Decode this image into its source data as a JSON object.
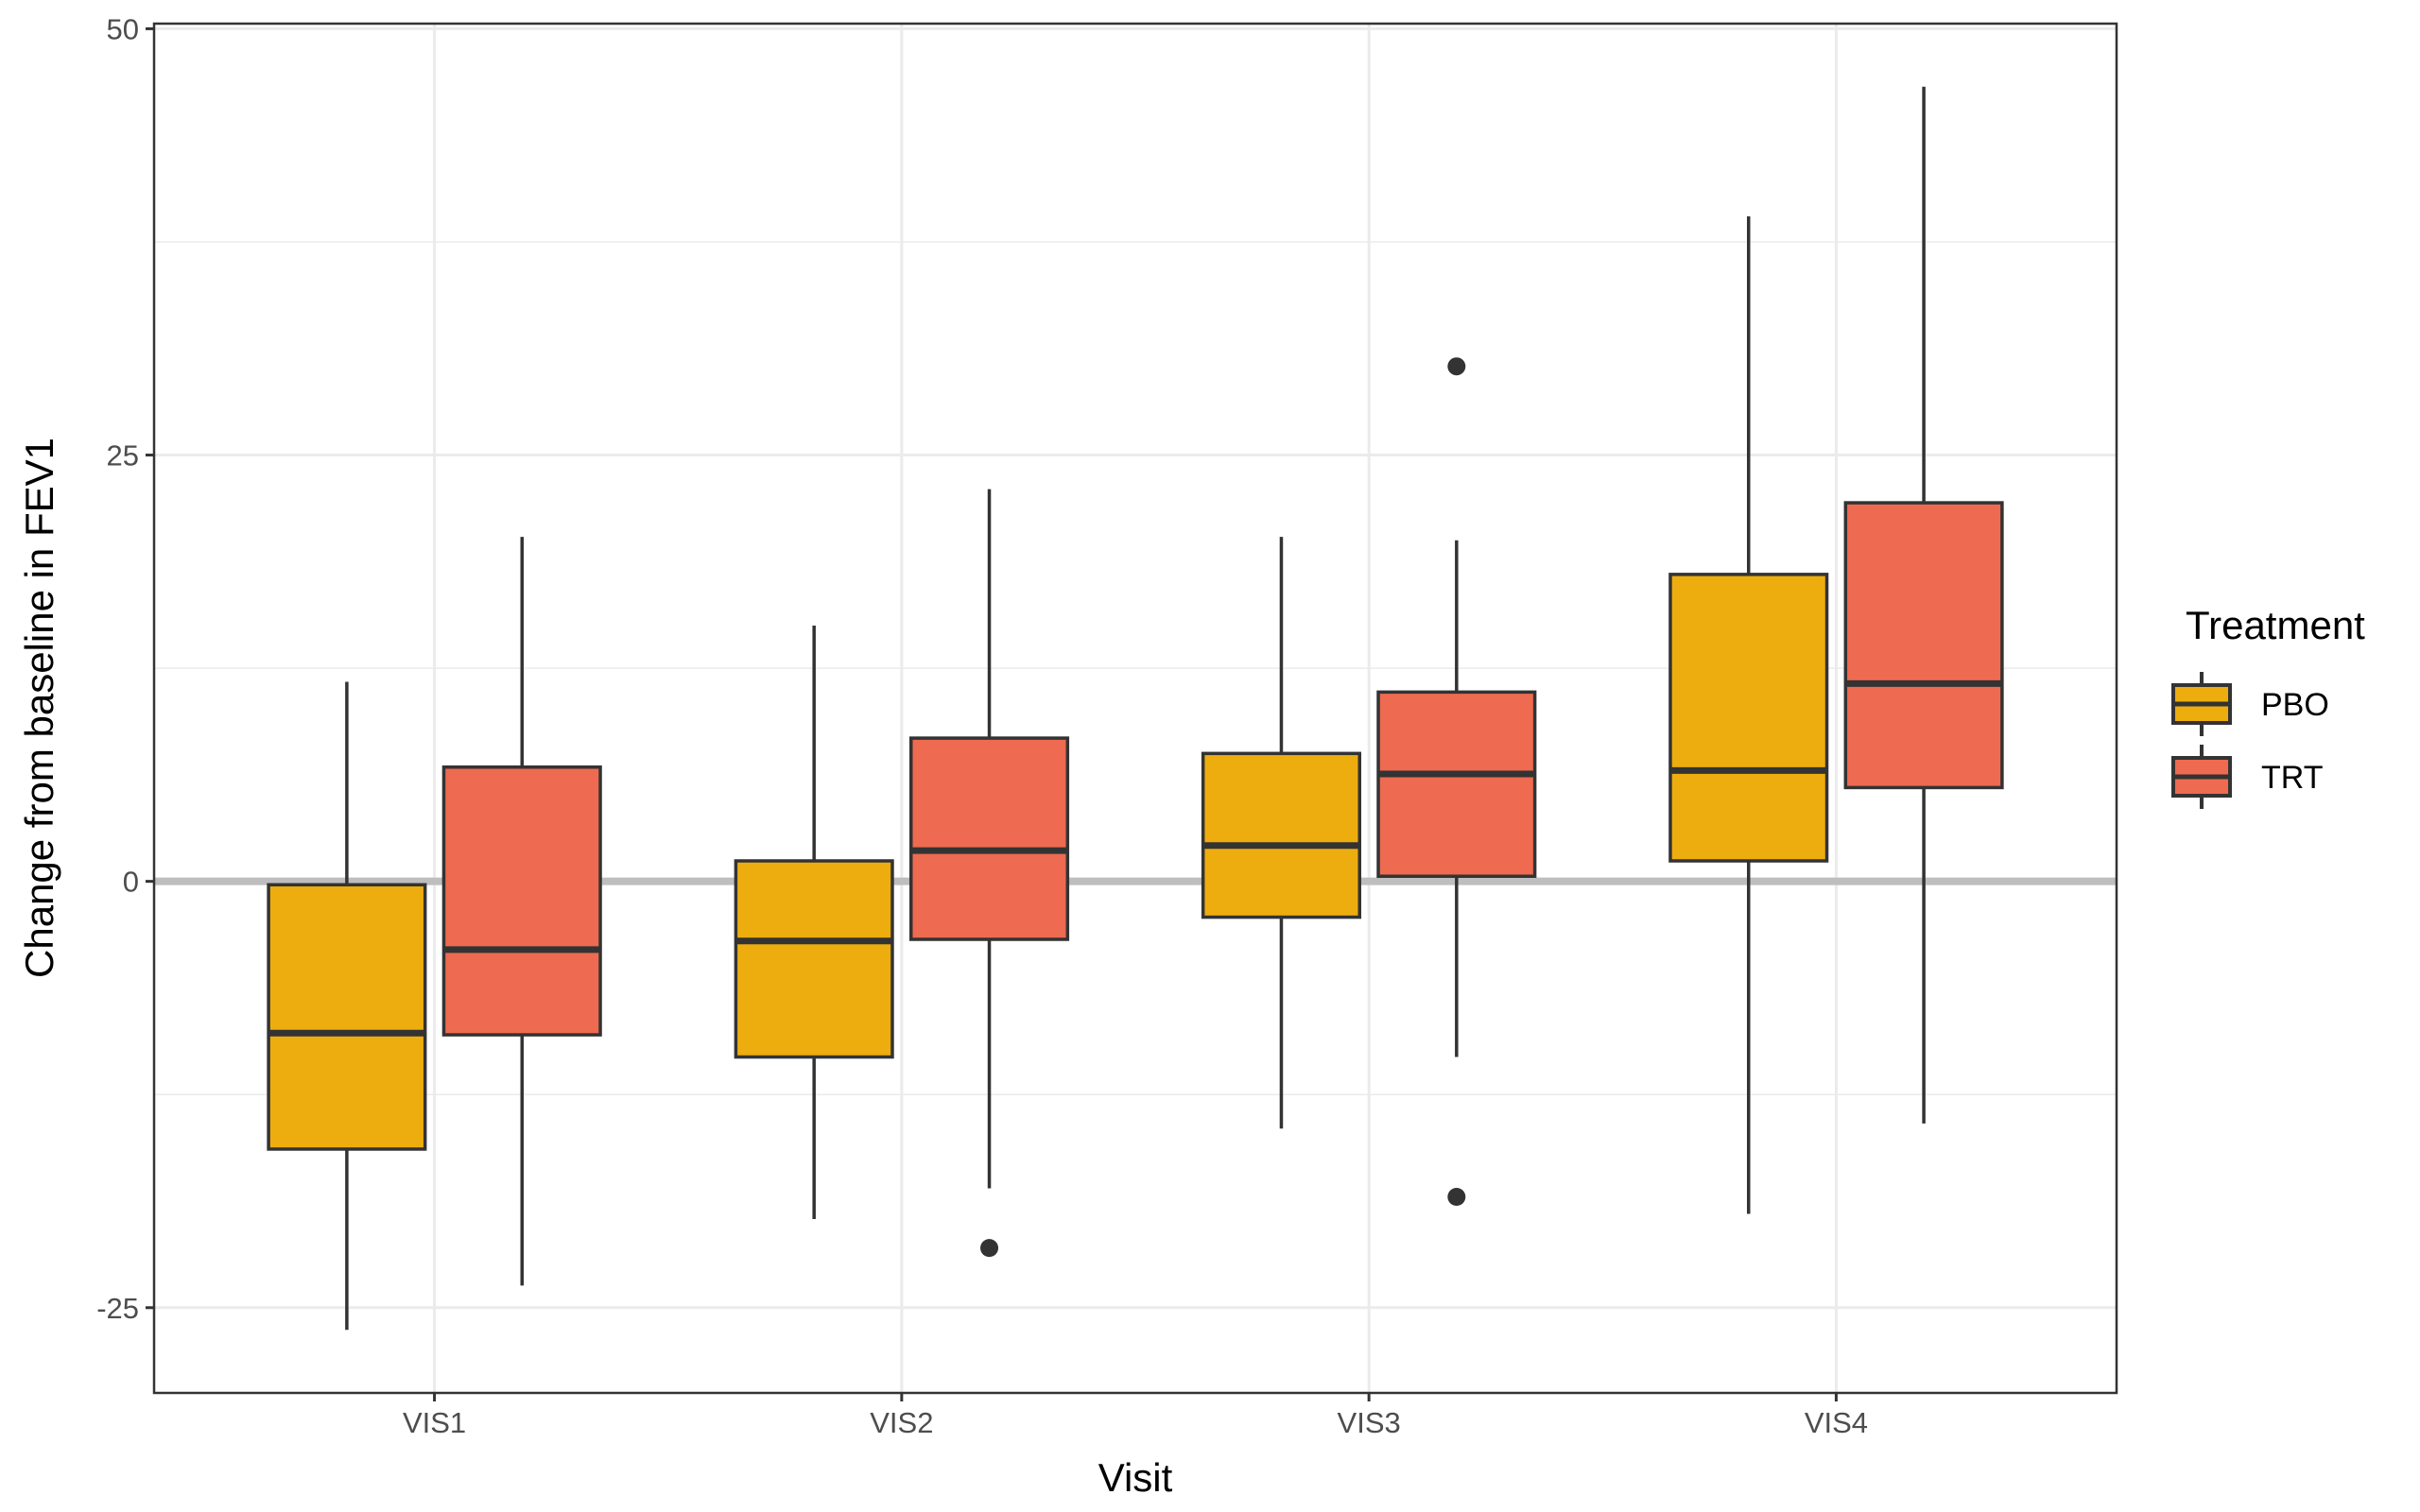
{
  "chart_data": {
    "type": "boxplot",
    "xlabel": "Visit",
    "ylabel": "Change from baseline in FEV1",
    "categories": [
      "VIS1",
      "VIS2",
      "VIS3",
      "VIS4"
    ],
    "ylim": [
      -30,
      50.3
    ],
    "yticks": [
      -25,
      0,
      25,
      50
    ],
    "ytick_labels": [
      "-25",
      "0",
      "25",
      "50"
    ],
    "grid": true,
    "reference_line_y": 0,
    "legend": {
      "title": "Treatment",
      "position": "right"
    },
    "series": [
      {
        "name": "PBO",
        "color": "#EEAD0E",
        "boxes": [
          {
            "whisker_low": -26.3,
            "q1": -15.7,
            "median": -8.9,
            "q3": -0.2,
            "whisker_high": 11.7,
            "outliers": []
          },
          {
            "whisker_low": -19.8,
            "q1": -10.3,
            "median": -3.5,
            "q3": 1.2,
            "whisker_high": 15.0,
            "outliers": []
          },
          {
            "whisker_low": -14.5,
            "q1": -2.1,
            "median": 2.1,
            "q3": 7.5,
            "whisker_high": 20.2,
            "outliers": []
          },
          {
            "whisker_low": -19.5,
            "q1": 1.2,
            "median": 6.5,
            "q3": 18.0,
            "whisker_high": 39.0,
            "outliers": []
          }
        ]
      },
      {
        "name": "TRT",
        "color": "#EE6A50",
        "boxes": [
          {
            "whisker_low": -23.7,
            "q1": -9.0,
            "median": -4.0,
            "q3": 6.7,
            "whisker_high": 20.2,
            "outliers": []
          },
          {
            "whisker_low": -18.0,
            "q1": -3.4,
            "median": 1.8,
            "q3": 8.4,
            "whisker_high": 23.0,
            "outliers": [
              -21.5
            ]
          },
          {
            "whisker_low": -10.3,
            "q1": 0.3,
            "median": 6.3,
            "q3": 11.1,
            "whisker_high": 20.0,
            "outliers": [
              30.2,
              -18.5
            ]
          },
          {
            "whisker_low": -14.2,
            "q1": 5.5,
            "median": 11.6,
            "q3": 22.2,
            "whisker_high": 46.6,
            "outliers": []
          }
        ]
      }
    ]
  }
}
